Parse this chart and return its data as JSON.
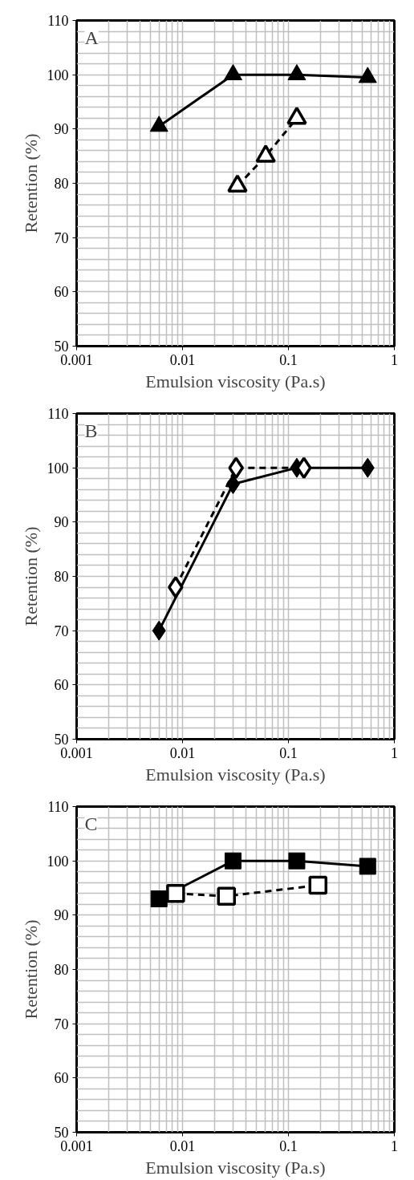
{
  "chart_data": [
    {
      "type": "line",
      "xlabel": "Emulsion viscosity (Pa.s)",
      "ylabel": "Retention (%)",
      "annotations": [
        "A"
      ],
      "log": "x",
      "grid": true,
      "xlim": [
        0.001,
        1
      ],
      "xticks": [
        0.001,
        0.01,
        0.1,
        1
      ],
      "ylim": [
        50,
        110
      ],
      "yticks": [
        50,
        60,
        70,
        80,
        90,
        100,
        110
      ],
      "series": [
        {
          "color": "#000000",
          "marker": "triangle",
          "line_style": "solid",
          "x": [
            0.006,
            0.03,
            0.12,
            0.56
          ],
          "values": [
            90.5,
            100,
            100,
            99.5
          ]
        },
        {
          "color": "#000000",
          "marker": "triangle",
          "line_style": "dashed",
          "x": [
            0.033,
            0.061,
            0.12
          ],
          "values": [
            79.5,
            85,
            92
          ]
        }
      ]
    },
    {
      "type": "line",
      "xlabel": "Emulsion viscosity (Pa.s)",
      "ylabel": "Retention (%)",
      "annotations": [
        "B"
      ],
      "log": "x",
      "grid": true,
      "xlim": [
        0.001,
        1
      ],
      "xticks": [
        0.001,
        0.01,
        0.1,
        1
      ],
      "ylim": [
        50,
        110
      ],
      "yticks": [
        50,
        60,
        70,
        80,
        90,
        100,
        110
      ],
      "series": [
        {
          "color": "#000000",
          "marker": "diamond",
          "line_style": "solid",
          "x": [
            0.006,
            0.03,
            0.12,
            0.56
          ],
          "values": [
            70,
            97,
            100,
            100
          ]
        },
        {
          "color": "#000000",
          "marker": "diamond",
          "line_style": "dashed",
          "x": [
            0.0086,
            0.032,
            0.14
          ],
          "values": [
            78,
            100,
            100
          ]
        }
      ]
    },
    {
      "type": "line",
      "xlabel": "Emulsion viscosity (Pa.s)",
      "ylabel": "Retention (%)",
      "annotations": [
        "C"
      ],
      "log": "x",
      "grid": true,
      "xlim": [
        0.001,
        1
      ],
      "xticks": [
        0.001,
        0.01,
        0.1,
        1
      ],
      "ylim": [
        50,
        110
      ],
      "yticks": [
        50,
        60,
        70,
        80,
        90,
        100,
        110
      ],
      "series": [
        {
          "color": "#000000",
          "marker": "square",
          "line_style": "solid",
          "x": [
            0.006,
            0.03,
            0.12,
            0.56
          ],
          "values": [
            93,
            100,
            100,
            99
          ]
        },
        {
          "color": "#000000",
          "marker": "square",
          "line_style": "dashed",
          "x": [
            0.0086,
            0.026,
            0.19
          ],
          "values": [
            94,
            93.5,
            95.5
          ]
        }
      ]
    }
  ]
}
